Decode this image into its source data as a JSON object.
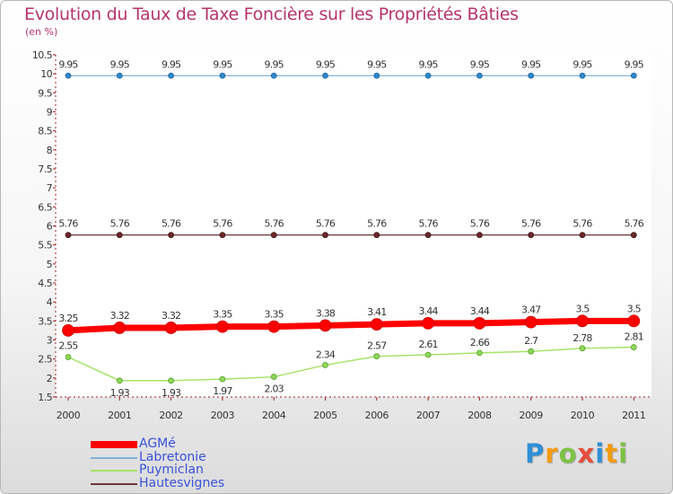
{
  "chart_data": {
    "type": "line",
    "title": "Evolution du Taux de Taxe Foncière sur les Propriétés Bâties",
    "unit_label": "(en %)",
    "categories": [
      "2000",
      "2001",
      "2002",
      "2003",
      "2004",
      "2005",
      "2006",
      "2007",
      "2008",
      "2009",
      "2010",
      "2011"
    ],
    "ylim": [
      1.5,
      10.5
    ],
    "yticks": [
      "1.5",
      "2",
      "2.5",
      "3",
      "3.5",
      "4",
      "4.5",
      "5",
      "5.5",
      "6",
      "6.5",
      "7",
      "7.5",
      "8",
      "8.5",
      "9",
      "9.5",
      "10",
      "10.5"
    ],
    "series": [
      {
        "name": "AGMé",
        "color": "#ff0000",
        "values": [
          3.25,
          3.32,
          3.32,
          3.35,
          3.35,
          3.38,
          3.41,
          3.44,
          3.44,
          3.47,
          3.5,
          3.5
        ],
        "labels": [
          "3.25",
          "3.32",
          "3.32",
          "3.35",
          "3.35",
          "3.38",
          "3.41",
          "3.44",
          "3.44",
          "3.47",
          "3.5",
          "3.5"
        ]
      },
      {
        "name": "Labretonie",
        "color": "#7fb0d8",
        "values": [
          9.95,
          9.95,
          9.95,
          9.95,
          9.95,
          9.95,
          9.95,
          9.95,
          9.95,
          9.95,
          9.95,
          9.95
        ],
        "labels": [
          "9.95",
          "9.95",
          "9.95",
          "9.95",
          "9.95",
          "9.95",
          "9.95",
          "9.95",
          "9.95",
          "9.95",
          "9.95",
          "9.95"
        ]
      },
      {
        "name": "Puymiclan",
        "color": "#a6e36a",
        "values": [
          2.55,
          1.93,
          1.93,
          1.97,
          2.03,
          2.34,
          2.57,
          2.61,
          2.66,
          2.7,
          2.78,
          2.81
        ],
        "labels": [
          "2.55",
          "1.93",
          "1.93",
          "1.97",
          "2.03",
          "2.34",
          "2.57",
          "2.61",
          "2.66",
          "2.7",
          "2.78",
          "2.81"
        ]
      },
      {
        "name": "Hautesvignes",
        "color": "#6b3535",
        "values": [
          5.76,
          5.76,
          5.76,
          5.76,
          5.76,
          5.76,
          5.76,
          5.76,
          5.76,
          5.76,
          5.76,
          5.76
        ],
        "labels": [
          "5.76",
          "5.76",
          "5.76",
          "5.76",
          "5.76",
          "5.76",
          "5.76",
          "5.76",
          "5.76",
          "5.76",
          "5.76",
          "5.76"
        ]
      }
    ]
  },
  "logo": {
    "text": "Proxiti",
    "letters": [
      "P",
      "r",
      "o",
      "x",
      "i",
      "t",
      "i"
    ],
    "colors": [
      "#2f8fd6",
      "#f39c12",
      "#7cc242",
      "#e74c3c",
      "#2f8fd6",
      "#f39c12",
      "#7cc242"
    ]
  }
}
